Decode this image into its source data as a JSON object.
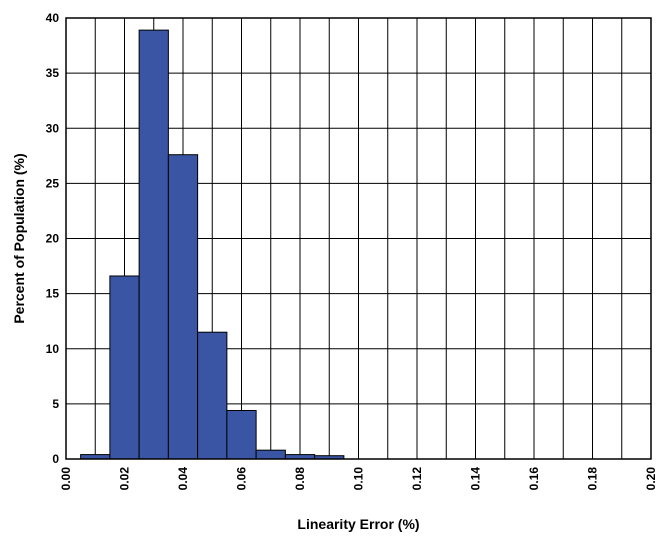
{
  "chart_data": {
    "type": "bar",
    "title": "",
    "xlabel": "Linearity Error (%)",
    "ylabel": "Percent of Population (%)",
    "xlim": [
      0.0,
      0.2
    ],
    "ylim": [
      0,
      40
    ],
    "x_ticks": [
      0.0,
      0.01,
      0.02,
      0.03,
      0.04,
      0.05,
      0.06,
      0.07,
      0.08,
      0.09,
      0.1,
      0.11,
      0.12,
      0.13,
      0.14,
      0.15,
      0.16,
      0.17,
      0.18,
      0.19,
      0.2
    ],
    "x_tick_labels": [
      "0.00",
      "0.02",
      "0.04",
      "0.06",
      "0.08",
      "0.10",
      "0.12",
      "0.14",
      "0.16",
      "0.18",
      "0.20"
    ],
    "y_ticks": [
      0,
      5,
      10,
      15,
      20,
      25,
      30,
      35,
      40
    ],
    "y_tick_labels": [
      "0",
      "5",
      "10",
      "15",
      "20",
      "25",
      "30",
      "35",
      "40"
    ],
    "grid": true,
    "bin_width": 0.01,
    "bins": [
      {
        "center": 0.01,
        "value": 0.4
      },
      {
        "center": 0.02,
        "value": 16.6
      },
      {
        "center": 0.03,
        "value": 38.9
      },
      {
        "center": 0.04,
        "value": 27.6
      },
      {
        "center": 0.05,
        "value": 11.5
      },
      {
        "center": 0.06,
        "value": 4.4
      },
      {
        "center": 0.07,
        "value": 0.8
      },
      {
        "center": 0.08,
        "value": 0.4
      },
      {
        "center": 0.09,
        "value": 0.3
      }
    ],
    "colors": {
      "bar_fill": "#3a55a4",
      "bar_stroke": "#000000",
      "grid": "#000000"
    }
  }
}
